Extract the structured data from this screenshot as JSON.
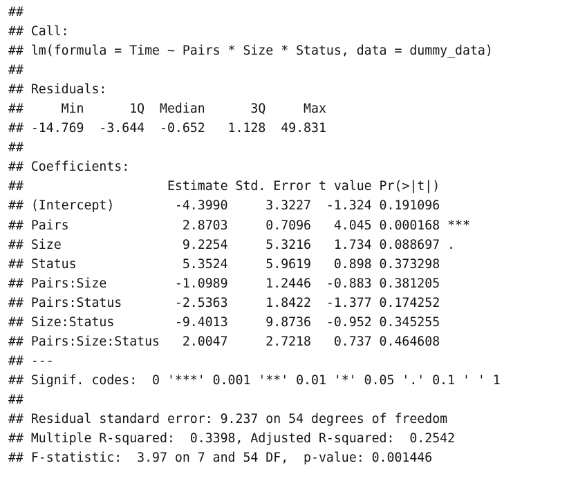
{
  "output_lines": [
    "##",
    "## Call:",
    "## lm(formula = Time ~ Pairs * Size * Status, data = dummy_data)",
    "##",
    "## Residuals:",
    "##     Min      1Q  Median      3Q     Max",
    "## -14.769  -3.644  -0.652   1.128  49.831",
    "##",
    "## Coefficients:",
    "##                   Estimate Std. Error t value Pr(>|t|)",
    "## (Intercept)        -4.3990     3.3227  -1.324 0.191096",
    "## Pairs               2.8703     0.7096   4.045 0.000168 ***",
    "## Size                9.2254     5.3216   1.734 0.088697 .",
    "## Status              5.3524     5.9619   0.898 0.373298",
    "## Pairs:Size         -1.0989     1.2446  -0.883 0.381205",
    "## Pairs:Status       -2.5363     1.8422  -1.377 0.174252",
    "## Size:Status        -9.4013     9.8736  -0.952 0.345255",
    "## Pairs:Size:Status   2.0047     2.7218   0.737 0.464608",
    "## ---",
    "## Signif. codes:  0 '***' 0.001 '**' 0.01 '*' 0.05 '.' 0.1 ' ' 1",
    "##",
    "## Residual standard error: 9.237 on 54 degrees of freedom",
    "## Multiple R-squared:  0.3398, Adjusted R-squared:  0.2542",
    "## F-statistic:  3.97 on 7 and 54 DF,  p-value: 0.001446"
  ]
}
